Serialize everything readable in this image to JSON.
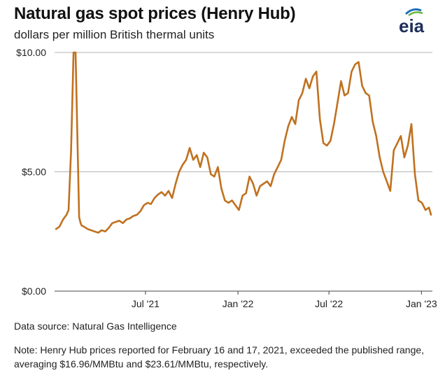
{
  "header": {
    "title": "Natural gas spot prices (Henry Hub)",
    "subtitle": "dollars per million British thermal units",
    "logo_text": "eia"
  },
  "footer": {
    "source": "Data source: Natural Gas Intelligence",
    "note": "Note: Henry Hub prices reported for February 16 and 17, 2021, exceeded the published range, averaging $16.96/MMBtu and $23.61/MMBtu, respectively."
  },
  "colors": {
    "line": "#c0711f",
    "grid": "#b3b3b3",
    "logo_blue": "#1d6fb8",
    "logo_green": "#6fb43f"
  },
  "chart_data": {
    "type": "line",
    "title": "Natural gas spot prices (Henry Hub)",
    "ylabel": "dollars per million British thermal units",
    "xlabel": "",
    "ylim": [
      0,
      10
    ],
    "xlim": [
      "2021-01-04",
      "2023-01-20"
    ],
    "y_ticks": [
      {
        "value": 0,
        "label": "$0.00"
      },
      {
        "value": 5,
        "label": "$5.00"
      },
      {
        "value": 10,
        "label": "$10.00"
      }
    ],
    "x_ticks": [
      {
        "date": "2021-07-01",
        "label": "Jul '21"
      },
      {
        "date": "2022-01-01",
        "label": "Jan '22"
      },
      {
        "date": "2022-07-01",
        "label": "Jul '22"
      },
      {
        "date": "2023-01-01",
        "label": "Jan '23"
      }
    ],
    "grid": "horizontal",
    "series": [
      {
        "name": "",
        "x": [
          "2021-01-04",
          "2021-01-11",
          "2021-01-18",
          "2021-01-25",
          "2021-01-29",
          "2021-02-03",
          "2021-02-08",
          "2021-02-10",
          "2021-02-12",
          "2021-02-19",
          "2021-02-22",
          "2021-02-24",
          "2021-03-01",
          "2021-03-08",
          "2021-03-15",
          "2021-03-22",
          "2021-03-29",
          "2021-04-05",
          "2021-04-12",
          "2021-04-19",
          "2021-04-26",
          "2021-05-03",
          "2021-05-10",
          "2021-05-17",
          "2021-05-24",
          "2021-05-31",
          "2021-06-07",
          "2021-06-14",
          "2021-06-21",
          "2021-06-28",
          "2021-07-05",
          "2021-07-12",
          "2021-07-19",
          "2021-07-26",
          "2021-08-02",
          "2021-08-09",
          "2021-08-16",
          "2021-08-23",
          "2021-08-30",
          "2021-09-06",
          "2021-09-13",
          "2021-09-20",
          "2021-09-27",
          "2021-10-04",
          "2021-10-11",
          "2021-10-18",
          "2021-10-25",
          "2021-11-01",
          "2021-11-08",
          "2021-11-15",
          "2021-11-22",
          "2021-11-29",
          "2021-12-06",
          "2021-12-13",
          "2021-12-20",
          "2021-12-27",
          "2022-01-03",
          "2022-01-10",
          "2022-01-17",
          "2022-01-24",
          "2022-01-31",
          "2022-02-07",
          "2022-02-14",
          "2022-02-21",
          "2022-02-28",
          "2022-03-07",
          "2022-03-14",
          "2022-03-21",
          "2022-03-28",
          "2022-04-04",
          "2022-04-11",
          "2022-04-18",
          "2022-04-25",
          "2022-05-02",
          "2022-05-09",
          "2022-05-16",
          "2022-05-23",
          "2022-05-30",
          "2022-06-06",
          "2022-06-13",
          "2022-06-20",
          "2022-06-27",
          "2022-07-04",
          "2022-07-11",
          "2022-07-18",
          "2022-07-25",
          "2022-08-01",
          "2022-08-08",
          "2022-08-15",
          "2022-08-22",
          "2022-08-29",
          "2022-09-05",
          "2022-09-12",
          "2022-09-19",
          "2022-09-26",
          "2022-10-03",
          "2022-10-10",
          "2022-10-17",
          "2022-10-24",
          "2022-10-31",
          "2022-11-07",
          "2022-11-14",
          "2022-11-21",
          "2022-11-28",
          "2022-12-05",
          "2022-12-12",
          "2022-12-19",
          "2022-12-26",
          "2023-01-02",
          "2023-01-09",
          "2023-01-16",
          "2023-01-20"
        ],
        "y": [
          2.6,
          2.7,
          3.0,
          3.2,
          3.4,
          5.9,
          10.0,
          10.0,
          10.0,
          3.1,
          2.85,
          2.75,
          2.7,
          2.6,
          2.55,
          2.5,
          2.45,
          2.55,
          2.5,
          2.65,
          2.85,
          2.9,
          2.95,
          2.85,
          3.0,
          3.05,
          3.15,
          3.2,
          3.35,
          3.6,
          3.7,
          3.65,
          3.9,
          4.05,
          4.15,
          4.0,
          4.2,
          3.9,
          4.5,
          5.0,
          5.3,
          5.5,
          6.0,
          5.5,
          5.7,
          5.2,
          5.8,
          5.6,
          4.9,
          4.8,
          5.2,
          4.3,
          3.8,
          3.7,
          3.8,
          3.6,
          3.4,
          4.0,
          4.1,
          4.8,
          4.5,
          4.0,
          4.4,
          4.5,
          4.6,
          4.4,
          4.9,
          5.2,
          5.5,
          6.3,
          6.9,
          7.3,
          7.0,
          8.0,
          8.3,
          8.9,
          8.5,
          9.0,
          9.2,
          7.2,
          6.2,
          6.1,
          6.3,
          7.0,
          7.9,
          8.8,
          8.2,
          8.3,
          9.2,
          9.5,
          9.6,
          8.6,
          8.3,
          8.2,
          7.1,
          6.5,
          5.6,
          5.0,
          4.6,
          4.2,
          5.9,
          6.2,
          6.5,
          5.6,
          6.1,
          7.0,
          4.9,
          3.8,
          3.7,
          3.4,
          3.5,
          3.2
        ]
      }
    ]
  }
}
